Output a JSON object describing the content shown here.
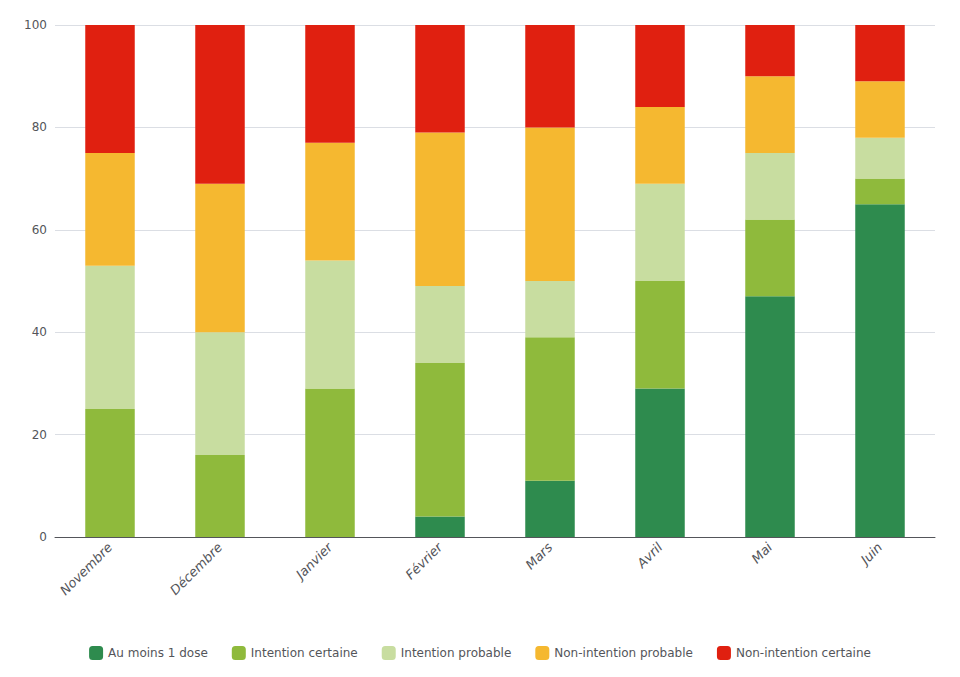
{
  "chart_data": {
    "type": "bar",
    "stacked": true,
    "categories": [
      "Novembre",
      "Décembre",
      "Janvier",
      "Février",
      "Mars",
      "Avril",
      "Mai",
      "Juin"
    ],
    "series": [
      {
        "name": "Au moins 1 dose",
        "color": "#2e8b4e",
        "values": [
          0,
          0,
          0,
          4,
          11,
          29,
          47,
          65
        ]
      },
      {
        "name": "Intention certaine",
        "color": "#8fba3c",
        "values": [
          25,
          16,
          29,
          30,
          28,
          21,
          15,
          5
        ]
      },
      {
        "name": "Intention probable",
        "color": "#c8dda0",
        "values": [
          28,
          24,
          25,
          15,
          11,
          19,
          13,
          8
        ]
      },
      {
        "name": "Non-intention probable",
        "color": "#f5b830",
        "values": [
          22,
          29,
          23,
          30,
          30,
          15,
          15,
          11
        ]
      },
      {
        "name": "Non-intention certaine",
        "color": "#e02010",
        "values": [
          25,
          31,
          23,
          21,
          20,
          16,
          10,
          11
        ]
      }
    ],
    "ylim": [
      0,
      100
    ],
    "yticks": [
      0,
      20,
      40,
      60,
      80,
      100
    ],
    "grid": true,
    "legend": "bottom"
  }
}
